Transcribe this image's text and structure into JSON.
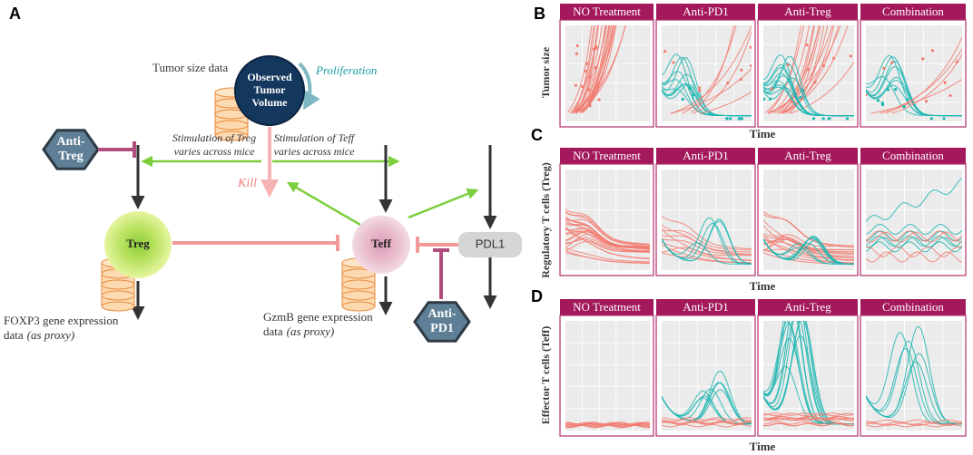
{
  "panel_a": {
    "label": "A",
    "tumor": {
      "lines": [
        "Observed",
        "Tumor",
        "Volume"
      ]
    },
    "tumor_data": "Tumor size data",
    "proliferation": "Proliferation",
    "anti_treg": {
      "lines": [
        "Anti-",
        "Treg"
      ]
    },
    "stim_treg": {
      "lines": [
        "Stimulation of Treg",
        "varies across mice"
      ]
    },
    "stim_teff": {
      "lines": [
        "Stimulation of Teff",
        "varies across mice"
      ]
    },
    "kill": "Kill",
    "treg": "Treg",
    "teff": "Teff",
    "pdl1": "PDL1",
    "anti_pd1": {
      "lines": [
        "Anti-",
        "PD1"
      ]
    },
    "foxp3": {
      "line1": "FOXP3 gene expression",
      "line2": "data",
      "note": "(as proxy)"
    },
    "gzmb": {
      "line1": "GzmB gene expression",
      "line2": "data",
      "note": "(as proxy)"
    }
  },
  "panels": [
    {
      "label": "B",
      "ylabel": "Tumor size",
      "xlabel": "Time",
      "facets": [
        "NO Treatment",
        "Anti-PD1",
        "Anti-Treg",
        "Combination"
      ]
    },
    {
      "label": "C",
      "ylabel": "Regulatory T cells (Treg)",
      "xlabel": "Time",
      "facets": [
        "NO Treatment",
        "Anti-PD1",
        "Anti-Treg",
        "Combination"
      ]
    },
    {
      "label": "D",
      "ylabel": "Effector T cells (Teff)",
      "xlabel": "Time",
      "facets": [
        "NO Treatment",
        "Anti-PD1",
        "Anti-Treg",
        "Combination"
      ]
    }
  ]
}
